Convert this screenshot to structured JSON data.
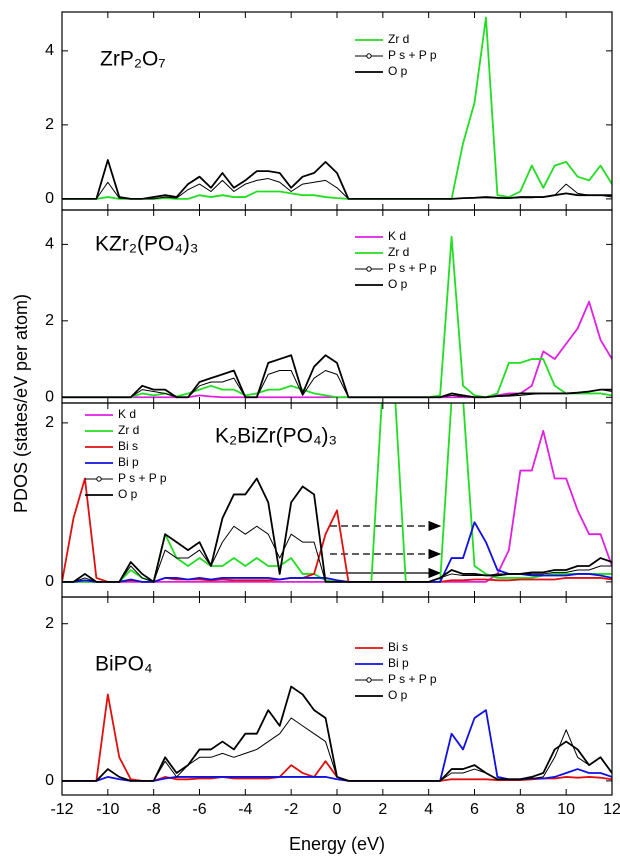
{
  "chart_data": [
    {
      "type": "line",
      "title": "ZrP₂O₇",
      "ylabel": "PDOS (states/eV per atom)",
      "legend": "upper center",
      "x": [
        -12,
        -11.5,
        -11,
        -10.5,
        -10,
        -9.5,
        -9,
        -8.5,
        -8,
        -7.5,
        -7,
        -6.5,
        -6,
        -5.5,
        -5,
        -4.5,
        -4,
        -3.5,
        -3,
        -2.5,
        -2,
        -1.5,
        -1,
        -0.5,
        0,
        0.5,
        1,
        1.5,
        2,
        2.5,
        3,
        3.5,
        4,
        4.5,
        5,
        5.5,
        6,
        6.5,
        7,
        7.5,
        8,
        8.5,
        9,
        9.5,
        10,
        10.5,
        11,
        11.5,
        12
      ],
      "xlim": [
        -12,
        12
      ],
      "ylim": [
        -0.3,
        5.05
      ],
      "yticks": [
        0,
        2,
        4
      ],
      "series": [
        {
          "name": "Zr d",
          "color": "#22dd22",
          "values": [
            0,
            0,
            0,
            0,
            0.05,
            0,
            0,
            0,
            0,
            0.02,
            0,
            0,
            0.1,
            0.05,
            0.1,
            0.05,
            0.05,
            0.2,
            0.2,
            0.2,
            0.15,
            0.1,
            0.1,
            0.05,
            0.02,
            0,
            0,
            0,
            0,
            0,
            0,
            0,
            0,
            0,
            0,
            1.5,
            2.6,
            4.9,
            0.1,
            0.05,
            0.2,
            0.9,
            0.3,
            0.9,
            1.0,
            0.6,
            0.5,
            0.9,
            0.4
          ]
        },
        {
          "name": "P s + P p",
          "color": "#000000",
          "marker": "circle",
          "values": [
            0,
            0,
            0,
            0,
            0.45,
            0.02,
            0,
            0,
            0,
            0.05,
            0.02,
            0.25,
            0.4,
            0.2,
            0.5,
            0.2,
            0.4,
            0.5,
            0.55,
            0.45,
            0.2,
            0.4,
            0.45,
            0.5,
            0.3,
            0,
            0,
            0,
            0,
            0,
            0,
            0,
            0,
            0,
            0,
            0.02,
            0.03,
            0.03,
            0.02,
            0.02,
            0.03,
            0.03,
            0.05,
            0.1,
            0.4,
            0.15,
            0.1,
            0.1,
            0.05
          ]
        },
        {
          "name": "O p",
          "color": "#000000",
          "values": [
            0,
            0,
            0,
            0,
            1.05,
            0.05,
            0,
            0,
            0.05,
            0.1,
            0.05,
            0.4,
            0.6,
            0.3,
            0.7,
            0.3,
            0.5,
            0.75,
            0.75,
            0.7,
            0.3,
            0.6,
            0.7,
            1.0,
            0.7,
            0,
            0,
            0,
            0,
            0,
            0,
            0,
            0,
            0,
            0,
            0.02,
            0.03,
            0.05,
            0.03,
            0.02,
            0.05,
            0.05,
            0.05,
            0.1,
            0.15,
            0.1,
            0.1,
            0.1,
            0.1
          ]
        }
      ]
    },
    {
      "type": "line",
      "title": "KZr₂(PO₄)₃",
      "legend": "upper center",
      "x": [
        -12,
        -11.5,
        -11,
        -10.5,
        -10,
        -9.5,
        -9,
        -8.5,
        -8,
        -7.5,
        -7,
        -6.5,
        -6,
        -5.5,
        -5,
        -4.5,
        -4,
        -3.5,
        -3,
        -2.5,
        -2,
        -1.5,
        -1,
        -0.5,
        0,
        0.5,
        1,
        1.5,
        2,
        2.5,
        3,
        3.5,
        4,
        4.5,
        5,
        5.5,
        6,
        6.5,
        7,
        7.5,
        8,
        8.5,
        9,
        9.5,
        10,
        10.5,
        11,
        11.5,
        12
      ],
      "xlim": [
        -12,
        12
      ],
      "ylim": [
        -0.15,
        4.9
      ],
      "yticks": [
        0,
        2,
        4
      ],
      "series": [
        {
          "name": "K d",
          "color": "#e020e0",
          "values": [
            0,
            0,
            0,
            0,
            0,
            0,
            0,
            0,
            0,
            0,
            0,
            0,
            0.05,
            0.02,
            0,
            0,
            0,
            0,
            0,
            0,
            0,
            0,
            0,
            0,
            0,
            0,
            0,
            0,
            0,
            0,
            0,
            0,
            0,
            0,
            0,
            0,
            0,
            0,
            0.05,
            0.1,
            0.1,
            0.3,
            1.2,
            1.0,
            1.4,
            1.8,
            2.5,
            1.5,
            1.0
          ]
        },
        {
          "name": "Zr d",
          "color": "#22dd22",
          "values": [
            0,
            0,
            0,
            0,
            0,
            0,
            0,
            0.1,
            0.05,
            0.1,
            0.02,
            0.1,
            0.2,
            0.3,
            0.2,
            0.2,
            0.05,
            0.1,
            0.2,
            0.2,
            0.3,
            0.2,
            0.1,
            0.05,
            0,
            0,
            0,
            0,
            0,
            0,
            0,
            0,
            0,
            0.05,
            4.2,
            0.3,
            0.05,
            0,
            0.1,
            0.9,
            0.9,
            1.0,
            1.0,
            0.3,
            0.1,
            0.1,
            0.1,
            0.1,
            0.05
          ]
        },
        {
          "name": "P s + P p",
          "color": "#000000",
          "marker": "circle",
          "values": [
            0,
            0,
            0,
            0,
            0,
            0,
            0,
            0.2,
            0.15,
            0.1,
            0,
            0,
            0.3,
            0.4,
            0.4,
            0.5,
            0,
            0,
            0.6,
            0.7,
            0.7,
            0.05,
            0.5,
            0.7,
            0.6,
            0,
            0,
            0,
            0,
            0,
            0,
            0,
            0,
            0,
            0.05,
            0.02,
            0,
            0,
            0.02,
            0.03,
            0.05,
            0.08,
            0.1,
            0.1,
            0.1,
            0.12,
            0.15,
            0.2,
            0.15
          ]
        },
        {
          "name": "O p",
          "color": "#000000",
          "values": [
            0,
            0,
            0,
            0,
            0,
            0,
            0,
            0.3,
            0.2,
            0.2,
            0,
            0,
            0.4,
            0.5,
            0.6,
            0.7,
            0,
            0,
            0.9,
            1.0,
            1.1,
            0.1,
            0.8,
            1.1,
            0.9,
            0,
            0,
            0,
            0,
            0,
            0,
            0,
            0,
            0,
            0.1,
            0.05,
            0,
            0,
            0.03,
            0.05,
            0.1,
            0.1,
            0.1,
            0.1,
            0.1,
            0.12,
            0.15,
            0.2,
            0.2
          ]
        }
      ]
    },
    {
      "type": "line",
      "title": "K₂BiZr(PO₄)₃",
      "legend": "upper left",
      "x": [
        -12,
        -11.5,
        -11,
        -10.5,
        -10,
        -9.5,
        -9,
        -8.5,
        -8,
        -7.5,
        -7,
        -6.5,
        -6,
        -5.5,
        -5,
        -4.5,
        -4,
        -3.5,
        -3,
        -2.5,
        -2,
        -1.5,
        -1,
        -0.5,
        0,
        0.5,
        1,
        1.5,
        2,
        2.5,
        3,
        3.5,
        4,
        4.5,
        5,
        5.5,
        6,
        6.5,
        7,
        7.5,
        8,
        8.5,
        9,
        9.5,
        10,
        10.5,
        11,
        11.5,
        12
      ],
      "xlim": [
        -12,
        12
      ],
      "ylim": [
        -0.19,
        2.25
      ],
      "yticks": [
        0,
        2
      ],
      "series": [
        {
          "name": "K d",
          "color": "#e020e0",
          "values": [
            0,
            0,
            0,
            0,
            0,
            0,
            0,
            0,
            0,
            0,
            0,
            0,
            0,
            0,
            0,
            0,
            0,
            0,
            0,
            0,
            0,
            0,
            0,
            0,
            0,
            0,
            0,
            0,
            0,
            0,
            0,
            0,
            0,
            0,
            0,
            0,
            0,
            0,
            0.1,
            0.4,
            1.4,
            1.4,
            1.9,
            1.3,
            1.3,
            0.9,
            0.6,
            0.6,
            0.2
          ]
        },
        {
          "name": "Zr d",
          "color": "#22dd22",
          "values": [
            0,
            0,
            0,
            0,
            0,
            0,
            0.15,
            0.05,
            0,
            0.6,
            0.3,
            0.2,
            0.3,
            0.2,
            0.2,
            0.3,
            0.2,
            0.3,
            0.2,
            0.2,
            0.3,
            0.1,
            0.1,
            0.02,
            0,
            0,
            0,
            0,
            2.5,
            2.5,
            0,
            0,
            0,
            0,
            2.3,
            2.3,
            0.2,
            0.1,
            0.05,
            0.05,
            0.05,
            0.05,
            0.08,
            0.1,
            0.1,
            0.1,
            0.1,
            0.1,
            0.1
          ]
        },
        {
          "name": "Bi s",
          "color": "#e01010",
          "values": [
            0,
            0.8,
            1.3,
            0.05,
            0,
            0,
            0.02,
            0,
            0,
            0.05,
            0.03,
            0.03,
            0.03,
            0.02,
            0.03,
            0.02,
            0.02,
            0.02,
            0.02,
            0.03,
            0.05,
            0.05,
            0.1,
            0.6,
            0.9,
            0,
            0,
            0,
            0,
            0,
            0,
            0,
            0,
            0,
            0.02,
            0.02,
            0.03,
            0.03,
            0.02,
            0.02,
            0.03,
            0.03,
            0.03,
            0.03,
            0.05,
            0.05,
            0.05,
            0.05,
            0.03
          ]
        },
        {
          "name": "Bi p",
          "color": "#1010e0",
          "values": [
            0,
            0,
            0.02,
            0,
            0,
            0,
            0.03,
            0,
            0,
            0.05,
            0.05,
            0.03,
            0.05,
            0.03,
            0.05,
            0.05,
            0.05,
            0.05,
            0.05,
            0.03,
            0.05,
            0.05,
            0.05,
            0.05,
            0.02,
            0,
            0,
            0,
            0,
            0,
            0,
            0,
            0,
            0,
            0.3,
            0.3,
            0.75,
            0.5,
            0.15,
            0.1,
            0.1,
            0.08,
            0.08,
            0.08,
            0.08,
            0.1,
            0.1,
            0.08,
            0.05
          ]
        },
        {
          "name": "P s + P p",
          "color": "#000000",
          "marker": "circle",
          "values": [
            0,
            0,
            0.05,
            0,
            0,
            0,
            0.2,
            0.05,
            0,
            0.4,
            0.3,
            0.3,
            0.4,
            0.2,
            0.5,
            0.7,
            0.6,
            0.7,
            0.6,
            0.3,
            0.6,
            0.5,
            0.5,
            0,
            0,
            0,
            0,
            0,
            0,
            0,
            0,
            0,
            0,
            0.05,
            0.1,
            0.08,
            0.08,
            0.08,
            0.1,
            0.1,
            0.1,
            0.1,
            0.1,
            0.12,
            0.12,
            0.15,
            0.15,
            0.2,
            0.2
          ]
        },
        {
          "name": "O p",
          "color": "#000000",
          "values": [
            0,
            0,
            0.1,
            0,
            0,
            0,
            0.25,
            0.1,
            0,
            0.6,
            0.5,
            0.4,
            0.5,
            0.2,
            0.8,
            1.1,
            1.1,
            1.3,
            1.0,
            0.1,
            1.0,
            1.2,
            1.1,
            0,
            0,
            0,
            0,
            0,
            0,
            0,
            0,
            0,
            0,
            0.05,
            0.15,
            0.1,
            0.1,
            0.08,
            0.08,
            0.1,
            0.1,
            0.12,
            0.12,
            0.15,
            0.15,
            0.2,
            0.2,
            0.3,
            0.25
          ]
        }
      ]
    },
    {
      "type": "line",
      "title": "BiPO₄",
      "xlabel": "Energy (eV)",
      "legend": "upper center",
      "x": [
        -12,
        -11.5,
        -11,
        -10.5,
        -10,
        -9.5,
        -9,
        -8.5,
        -8,
        -7.5,
        -7,
        -6.5,
        -6,
        -5.5,
        -5,
        -4.5,
        -4,
        -3.5,
        -3,
        -2.5,
        -2,
        -1.5,
        -1,
        -0.5,
        0,
        0.5,
        1,
        1.5,
        2,
        2.5,
        3,
        3.5,
        4,
        4.5,
        5,
        5.5,
        6,
        6.5,
        7,
        7.5,
        8,
        8.5,
        9,
        9.5,
        10,
        10.5,
        11,
        11.5,
        12
      ],
      "xlim": [
        -12,
        12
      ],
      "ylim": [
        -0.18,
        2.34
      ],
      "yticks": [
        0,
        2
      ],
      "xticks": [
        -12,
        -10,
        -8,
        -6,
        -4,
        -2,
        0,
        2,
        4,
        6,
        8,
        10,
        12
      ],
      "series": [
        {
          "name": "Bi s",
          "color": "#e01010",
          "values": [
            0,
            0,
            0,
            0,
            1.1,
            0.3,
            0.02,
            0,
            0,
            0.05,
            0.02,
            0.02,
            0.03,
            0.03,
            0.05,
            0.03,
            0.03,
            0.03,
            0.03,
            0.05,
            0.2,
            0.1,
            0.05,
            0.25,
            0.05,
            0,
            0,
            0,
            0,
            0,
            0,
            0,
            0,
            0,
            0.02,
            0.02,
            0.02,
            0.02,
            0.01,
            0.01,
            0.01,
            0.02,
            0.03,
            0.03,
            0.05,
            0.04,
            0.05,
            0.04,
            0.02
          ]
        },
        {
          "name": "Bi p",
          "color": "#1010e0",
          "values": [
            0,
            0,
            0,
            0,
            0.05,
            0.02,
            0,
            0,
            0,
            0.03,
            0.05,
            0.05,
            0.05,
            0.05,
            0.05,
            0.05,
            0.05,
            0.05,
            0.05,
            0.05,
            0.05,
            0.05,
            0.05,
            0.05,
            0.02,
            0,
            0,
            0,
            0,
            0,
            0,
            0,
            0,
            0,
            0.6,
            0.4,
            0.8,
            0.9,
            0.05,
            0.02,
            0.02,
            0.03,
            0.03,
            0.05,
            0.1,
            0.15,
            0.1,
            0.1,
            0.05
          ]
        },
        {
          "name": "P s + P p",
          "color": "#000000",
          "marker": "circle",
          "values": [
            0,
            0,
            0,
            0,
            0.15,
            0.05,
            0,
            0,
            0,
            0.25,
            0.05,
            0.2,
            0.3,
            0.3,
            0.35,
            0.3,
            0.35,
            0.4,
            0.5,
            0.6,
            0.8,
            0.7,
            0.6,
            0.5,
            0.05,
            0,
            0,
            0,
            0,
            0,
            0,
            0,
            0,
            0,
            0.1,
            0.1,
            0.15,
            0.1,
            0.02,
            0.02,
            0.02,
            0.03,
            0.05,
            0.3,
            0.65,
            0.3,
            0.2,
            0.3,
            0.1
          ]
        },
        {
          "name": "O p",
          "color": "#000000",
          "values": [
            0,
            0,
            0,
            0,
            0.15,
            0.05,
            0,
            0,
            0,
            0.3,
            0.1,
            0.2,
            0.4,
            0.4,
            0.5,
            0.4,
            0.6,
            0.6,
            0.9,
            0.7,
            1.2,
            1.1,
            0.9,
            0.8,
            0.05,
            0,
            0,
            0,
            0,
            0,
            0,
            0,
            0,
            0,
            0.15,
            0.15,
            0.2,
            0.1,
            0.02,
            0.02,
            0.02,
            0.05,
            0.1,
            0.4,
            0.5,
            0.4,
            0.2,
            0.3,
            0.1
          ]
        }
      ]
    }
  ]
}
